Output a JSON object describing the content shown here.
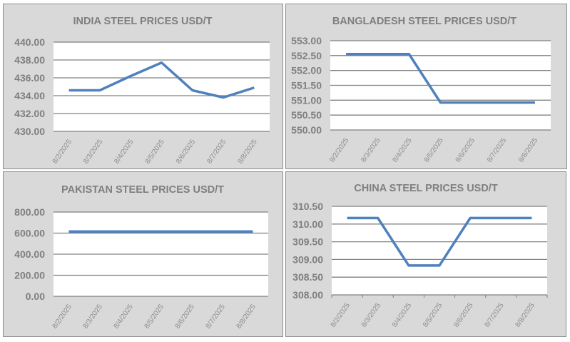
{
  "chart_data": [
    {
      "type": "line",
      "title": "INDIA STEEL PRICES USD/T",
      "categories": [
        "8/2/2025",
        "8/3/2025",
        "8/4/2025",
        "8/5/2025",
        "8/6/2025",
        "8/7/2025",
        "8/8/2025"
      ],
      "values": [
        434.6,
        434.6,
        436.2,
        437.7,
        434.6,
        433.8,
        434.9
      ],
      "ylim": [
        430,
        440
      ],
      "yticks": [
        "430.00",
        "432.00",
        "434.00",
        "436.00",
        "438.00",
        "440.00"
      ],
      "grid": true,
      "line_color": "#4f81bd"
    },
    {
      "type": "line",
      "title": "BANGLADESH STEEL PRICES USD/T",
      "categories": [
        "8/2/2025",
        "8/3/2025",
        "8/4/2025",
        "8/5/2025",
        "8/6/2025",
        "8/7/2025",
        "8/8/2025"
      ],
      "values": [
        552.55,
        552.55,
        552.55,
        550.92,
        550.92,
        550.92,
        550.92
      ],
      "ylim": [
        550,
        553
      ],
      "yticks": [
        "550.00",
        "550.50",
        "551.00",
        "551.50",
        "552.00",
        "552.50",
        "553.00"
      ],
      "grid": true,
      "line_color": "#4f81bd"
    },
    {
      "type": "line",
      "title": "PAKISTAN STEEL PRICES USD/T",
      "categories": [
        "8/2/2025",
        "8/3/2025",
        "8/4/2025",
        "8/5/2025",
        "8/6/2025",
        "8/7/2025",
        "8/8/2025"
      ],
      "values": [
        615,
        615,
        615,
        615,
        615,
        615,
        615
      ],
      "ylim": [
        0,
        800
      ],
      "yticks": [
        "0.00",
        "200.00",
        "400.00",
        "600.00",
        "800.00"
      ],
      "grid": true,
      "line_color": "#4f81bd"
    },
    {
      "type": "line",
      "title": "CHINA STEEL PRICES USD/T",
      "categories": [
        "8/2/2025",
        "8/3/2025",
        "8/4/2025",
        "8/5/2025",
        "8/6/2025",
        "8/7/2025",
        "8/8/2025"
      ],
      "values": [
        310.17,
        310.17,
        308.83,
        308.83,
        310.17,
        310.17,
        310.17
      ],
      "ylim": [
        308,
        310.5
      ],
      "yticks": [
        "308.00",
        "308.50",
        "309.00",
        "309.50",
        "310.00",
        "310.50"
      ],
      "grid": true,
      "line_color": "#4f81bd"
    }
  ]
}
